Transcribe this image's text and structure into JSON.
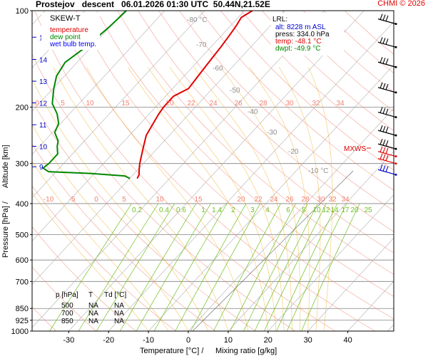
{
  "header": {
    "title": "Prostejov   descent   06.01.2026 01:30 UTC  50.44N,21.52E",
    "copyright": "CHMI © 2026"
  },
  "colors": {
    "temperature": "#e00000",
    "dew_point": "#008800",
    "wet_bulb": "#0000ff",
    "mixing_ratio": "#70c020",
    "dry_adiabat": "#f08070",
    "moist_adiabat": "#f0a000",
    "isobar": "#808080",
    "wind_barb_blue": "#0000cc",
    "altitude_axis": "#0000cc"
  },
  "legend": {
    "title": "SKEW-T",
    "items": [
      {
        "label": "temperature",
        "color": "#e00000"
      },
      {
        "label": "dew point",
        "color": "#008800"
      },
      {
        "label": "wet bulb temp.",
        "color": "#0000ff"
      }
    ]
  },
  "lrl_box": {
    "title": "LRL:",
    "alt": "alt: 8228 m ASL",
    "press": "press: 334.0 hPa",
    "temp": "temp: -48.1 °C",
    "dwpt": "dwpt: -49.9 °C"
  },
  "mxws_label": "MXWS",
  "level_table": {
    "headers": [
      "p [hPa]",
      "T",
      "Td [°C]"
    ],
    "rows": [
      [
        "500",
        "NA",
        "NA"
      ],
      [
        "700",
        "NA",
        "NA"
      ],
      [
        "850",
        "NA",
        "NA"
      ]
    ]
  },
  "chart_data": {
    "type": "skew-t",
    "title": "Prostejov   descent   06.01.2026 01:30 UTC  50.44N,21.52E",
    "xlabel_prefix": "Temperature [°C]  /",
    "xlabel_mixing": "Mixing ratio [g/kg]",
    "ylabel_pressure": "Pressure [hPa]  /",
    "ylabel_altitude": "Altitude [km]",
    "x_ticks": [
      -30,
      -20,
      -10,
      0,
      10,
      20,
      30,
      40
    ],
    "pressure_ticks": [
      100,
      200,
      300,
      400,
      500,
      600,
      700,
      850,
      925,
      1000
    ],
    "altitude_ticks_km": [
      9,
      10,
      11,
      12,
      13,
      14,
      15
    ],
    "dry_adiabat_labels": [
      "-80 °C",
      "-70",
      "-60",
      "-50",
      "-40",
      "-30",
      "-20",
      "-10 °C"
    ],
    "moist_adiabat_labels_upper": [
      "0",
      "5",
      "10",
      "15",
      "20",
      "22",
      "24",
      "26",
      "28",
      "30",
      "32",
      "34"
    ],
    "moist_adiabat_labels_lower": [
      "-10",
      "-5",
      "0",
      "5",
      "10",
      "15",
      "20",
      "22",
      "24",
      "26",
      "28",
      "30",
      "32",
      "34"
    ],
    "mixing_ratio_labels": [
      "0.2",
      "0.4",
      "0.6",
      "1",
      "1.4",
      "2",
      "3",
      "4",
      "6",
      "8",
      "10",
      "12",
      "14",
      "17",
      "20",
      "25"
    ],
    "temperature_series": {
      "name": "temperature",
      "points": [
        {
          "p": 100,
          "t": -58.0
        },
        {
          "p": 105,
          "t": -59.2
        },
        {
          "p": 112,
          "t": -58.5
        },
        {
          "p": 120,
          "t": -58.0
        },
        {
          "p": 130,
          "t": -57.5
        },
        {
          "p": 145,
          "t": -57.0
        },
        {
          "p": 160,
          "t": -56.5
        },
        {
          "p": 175,
          "t": -56.0
        },
        {
          "p": 185,
          "t": -58.0
        },
        {
          "p": 200,
          "t": -58.0
        },
        {
          "p": 210,
          "t": -57.6
        },
        {
          "p": 225,
          "t": -56.8
        },
        {
          "p": 245,
          "t": -55.8
        },
        {
          "p": 270,
          "t": -53.5
        },
        {
          "p": 300,
          "t": -50.9
        },
        {
          "p": 315,
          "t": -49.5
        },
        {
          "p": 325,
          "t": -48.5
        },
        {
          "p": 334,
          "t": -48.1
        }
      ]
    },
    "dew_point_series": {
      "name": "dew point",
      "points": [
        {
          "p": 100,
          "t": -89.6
        },
        {
          "p": 112,
          "t": -90.1
        },
        {
          "p": 130,
          "t": -91.4
        },
        {
          "p": 145,
          "t": -93.0
        },
        {
          "p": 160,
          "t": -92.0
        },
        {
          "p": 175,
          "t": -89.8
        },
        {
          "p": 195,
          "t": -86.7
        },
        {
          "p": 210,
          "t": -83.1
        },
        {
          "p": 225,
          "t": -80.5
        },
        {
          "p": 240,
          "t": -79.4
        },
        {
          "p": 255,
          "t": -76.6
        },
        {
          "p": 265,
          "t": -75.6
        },
        {
          "p": 280,
          "t": -73.7
        },
        {
          "p": 300,
          "t": -73.7
        },
        {
          "p": 310,
          "t": -74.1
        },
        {
          "p": 318,
          "t": -71.9
        },
        {
          "p": 322,
          "t": -61.4
        },
        {
          "p": 328,
          "t": -51.8
        },
        {
          "p": 334,
          "t": -49.9
        }
      ]
    },
    "wind_barbs_hpa": [
      110,
      130,
      150,
      180,
      215,
      245,
      270,
      285,
      300,
      325
    ]
  }
}
